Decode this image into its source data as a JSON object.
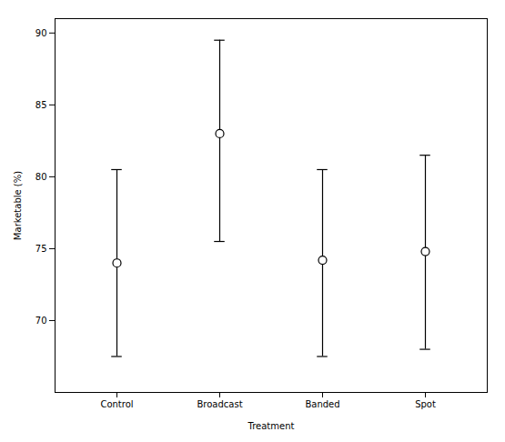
{
  "chart_data": {
    "type": "errorbar",
    "categories": [
      "Control",
      "Broadcast",
      "Banded",
      "Spot"
    ],
    "values": [
      74.0,
      83.0,
      74.2,
      74.8
    ],
    "lower_errors": [
      6.5,
      7.5,
      6.7,
      6.8
    ],
    "upper_errors": [
      6.5,
      6.5,
      6.3,
      6.7
    ],
    "xlabel": "Treatment",
    "ylabel": "Marketable (%)",
    "ylim": [
      65,
      91
    ],
    "yticks": [
      70,
      75,
      80,
      85,
      90
    ],
    "color": "black",
    "marker": "circle",
    "grid": false
  }
}
